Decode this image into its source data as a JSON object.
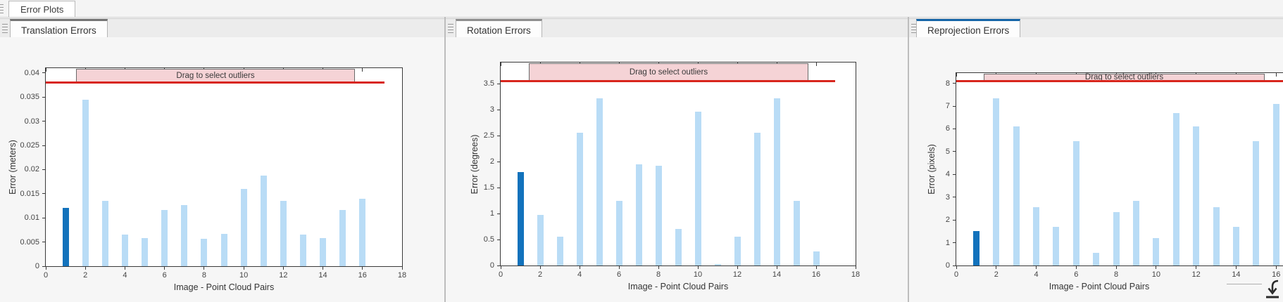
{
  "tabs": {
    "main": "Error Plots"
  },
  "panels": [
    {
      "tab": "Translation Errors",
      "accent": "#757575"
    },
    {
      "tab": "Rotation Errors",
      "accent": "#8f8f8f"
    },
    {
      "tab": "Reprojection Errors",
      "accent": "#1565a8"
    }
  ],
  "icons": {
    "grip": "drag-grip-icon",
    "dock_arrow": "dock-arrow-icon",
    "dock_arrow_color": "#2b2b2b"
  },
  "chart_data": [
    {
      "type": "bar",
      "title": "Translation Errors",
      "xlabel": "Image - Point Cloud Pairs",
      "ylabel": "Error (meters)",
      "band_label": "Drag to select outliers",
      "categories": [
        1,
        2,
        3,
        4,
        5,
        6,
        7,
        8,
        9,
        10,
        11,
        12,
        13,
        14,
        15,
        16
      ],
      "values": [
        0.012,
        0.0345,
        0.0135,
        0.0066,
        0.0058,
        0.0116,
        0.0127,
        0.0056,
        0.0067,
        0.016,
        0.0188,
        0.0135,
        0.0066,
        0.0058,
        0.0116,
        0.014
      ],
      "highlight_index": 0,
      "threshold": 0.038,
      "ylim": [
        0,
        0.041
      ],
      "xlim": [
        0,
        18
      ],
      "yticks": [
        0,
        0.005,
        0.01,
        0.015,
        0.02,
        0.025,
        0.03,
        0.035,
        0.04
      ],
      "ytick_labels": [
        "0",
        "0.005",
        "0.01",
        "0.015",
        "0.02",
        "0.025",
        "0.03",
        "0.035",
        "0.04"
      ],
      "xticks": [
        0,
        2,
        4,
        6,
        8,
        10,
        12,
        14,
        16,
        18
      ],
      "grid": false,
      "legend": "none",
      "colors": {
        "bar": "#b9dcf6",
        "highlight": "#1272bc",
        "threshold_line": "#d8261d",
        "band_fill": "#f5d3d6"
      }
    },
    {
      "type": "bar",
      "title": "Rotation Errors",
      "xlabel": "Image - Point Cloud Pairs",
      "ylabel": "Error (degrees)",
      "band_label": "Drag to select outliers",
      "categories": [
        1,
        2,
        3,
        4,
        5,
        6,
        7,
        8,
        9,
        10,
        11,
        12,
        13,
        14,
        15,
        16
      ],
      "values": [
        1.8,
        0.98,
        0.56,
        2.56,
        3.22,
        1.25,
        1.95,
        1.92,
        0.7,
        2.96,
        0.03,
        0.56,
        2.56,
        3.22,
        1.25,
        0.27
      ],
      "highlight_index": 0,
      "threshold": 3.55,
      "ylim": [
        0,
        3.91
      ],
      "xlim": [
        0,
        18
      ],
      "yticks": [
        0,
        0.5,
        1,
        1.5,
        2,
        2.5,
        3,
        3.5
      ],
      "ytick_labels": [
        "0",
        "0.5",
        "1",
        "1.5",
        "2",
        "2.5",
        "3",
        "3.5"
      ],
      "xticks": [
        0,
        2,
        4,
        6,
        8,
        10,
        12,
        14,
        16,
        18
      ],
      "grid": false,
      "legend": "none",
      "colors": {
        "bar": "#b9dcf6",
        "highlight": "#1272bc",
        "threshold_line": "#d8261d",
        "band_fill": "#f5d3d6"
      }
    },
    {
      "type": "bar",
      "title": "Reprojection Errors",
      "xlabel": "Image - Point Cloud Pairs",
      "ylabel": "Error (pixels)",
      "band_label": "Drag to select outliers",
      "categories": [
        1,
        2,
        3,
        4,
        5,
        6,
        7,
        8,
        9,
        10,
        11,
        12,
        13,
        14,
        15,
        16
      ],
      "values": [
        1.5,
        7.35,
        6.1,
        2.55,
        1.7,
        5.45,
        0.55,
        2.35,
        2.85,
        1.2,
        6.7,
        6.1,
        2.55,
        1.7,
        5.45,
        7.1
      ],
      "highlight_index": 0,
      "threshold": 8.1,
      "ylim": [
        0,
        8.45
      ],
      "xlim": [
        0,
        18
      ],
      "yticks": [
        0,
        1,
        2,
        3,
        4,
        5,
        6,
        7,
        8
      ],
      "ytick_labels": [
        "0",
        "1",
        "2",
        "3",
        "4",
        "5",
        "6",
        "7",
        "8"
      ],
      "xticks": [
        0,
        2,
        4,
        6,
        8,
        10,
        12,
        14,
        16
      ],
      "grid": false,
      "legend": "none",
      "colors": {
        "bar": "#b9dcf6",
        "highlight": "#1272bc",
        "threshold_line": "#d8261d",
        "band_fill": "#f5d3d6"
      }
    }
  ]
}
